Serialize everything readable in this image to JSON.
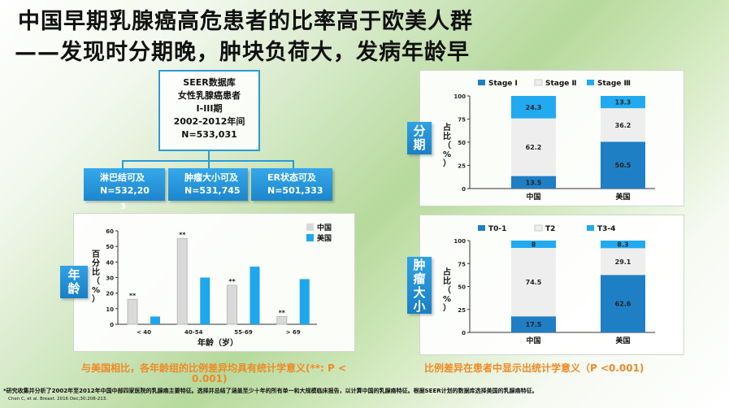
{
  "title_line1": "中国早期乳腺癌高危患者的比率高于欧美人群",
  "title_line2": "——发现时分期晚，肿块负荷大，发病年龄早",
  "seer": [
    "SEER数据库",
    "女性乳腺癌患者",
    "I-III期",
    "2002-2012年间",
    "N=533,031"
  ],
  "boxes": [
    {
      "line1": "淋巴结可及",
      "line2": "N=532,20"
    },
    {
      "line1": "肿瘤大小可及",
      "line2": "N=531,745"
    },
    {
      "line1": "ER状态可及",
      "line2": "N=501,333"
    }
  ],
  "box_overflow": "3",
  "side_labels": {
    "age": "年龄",
    "stage": "分期",
    "size": "肿瘤大小"
  },
  "colors": {
    "china_gray": "#d9d9d9",
    "us_blue": "#1ea7ee",
    "stage1": "#1f7fc5",
    "stage2": "#eeeeee",
    "stage3": "#22aaf0",
    "accent_orange": "#f08a24"
  },
  "caption_left_1": "与美国相比，各年龄组的比例差异均具有统计学意义(**: P <",
  "caption_left_2": "0.001)",
  "caption_right": "比例差异在患者中显示出统计学意义（P <0.001)",
  "footnote": "*研究收集并分析了2002年至2012年中国中部四家医院的乳腺癌主要特征。选择并总结了涵盖至少十年的所有单一和大规模临床报告，以计算中国的乳腺癌特征。根据SEER计划的数据库选择美国的乳腺癌特征。",
  "citation": "Chen C, et al. Breast. 2016 Dec;30:208-213.",
  "chart_data": [
    {
      "type": "bar",
      "categories": [
        "< 40",
        "40-54",
        "55-69",
        "> 69"
      ],
      "series": [
        {
          "name": "中国",
          "values": [
            16,
            55,
            25,
            5
          ]
        },
        {
          "name": "美国",
          "values": [
            5,
            30,
            37,
            29
          ]
        }
      ],
      "annotations": [
        "**",
        "**",
        "**",
        "**"
      ],
      "xlabel": "年龄（岁）",
      "ylabel": "百分比（%）",
      "ylim": [
        0,
        60
      ],
      "yticks": [
        "0",
        "10",
        "20",
        "30",
        "40",
        "50",
        "60"
      ],
      "legend": "top-right",
      "grid": false
    },
    {
      "type": "bar",
      "stacked": true,
      "categories": [
        "中国",
        "美国"
      ],
      "series": [
        {
          "name": "Stage Ⅰ",
          "values": [
            13.5,
            50.5
          ]
        },
        {
          "name": "Stage Ⅱ",
          "values": [
            62.2,
            36.2
          ]
        },
        {
          "name": "Stage Ⅲ",
          "values": [
            24.3,
            13.3
          ]
        }
      ],
      "ylabel": "占比（%）",
      "ylim": [
        0,
        100
      ],
      "yticks": [
        "0",
        "25",
        "50",
        "75",
        "100"
      ],
      "legend": "top",
      "grid": false
    },
    {
      "type": "bar",
      "stacked": true,
      "categories": [
        "中国",
        "美国"
      ],
      "series": [
        {
          "name": "T0-1",
          "values": [
            17.5,
            62.6
          ]
        },
        {
          "name": "T2",
          "values": [
            74.5,
            29.1
          ]
        },
        {
          "name": "T3-4",
          "values": [
            8.0,
            8.3
          ]
        }
      ],
      "ylabel": "占比（%）",
      "ylim": [
        0,
        100
      ],
      "yticks": [
        "0",
        "25",
        "50",
        "75",
        "100"
      ],
      "legend": "top",
      "grid": false
    }
  ]
}
